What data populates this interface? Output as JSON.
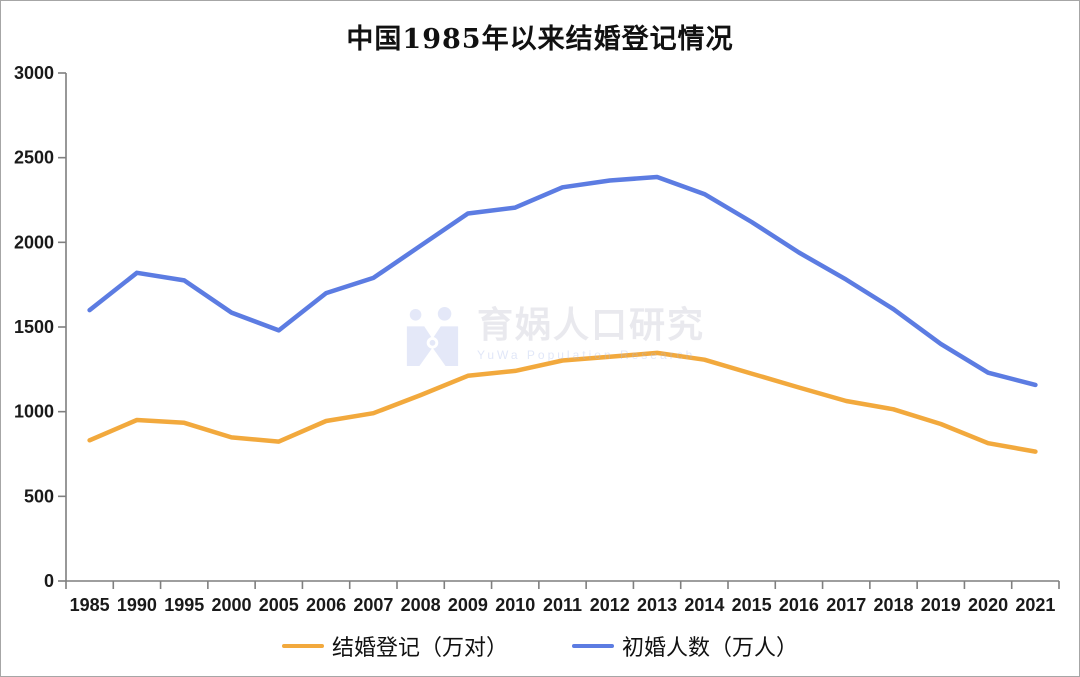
{
  "title": "中国1985年以来结婚登记情况",
  "watermark": {
    "brand": "育娲人口研究",
    "subtext": "YuWa Population Research"
  },
  "colors": {
    "marriage_registrations": "#F2A93D",
    "first_marriages": "#5C7CE2",
    "axis": "#7f7f7f",
    "watermark_logo": "#e4e8f8"
  },
  "chart_data": {
    "type": "line",
    "title": "中国1985年以来结婚登记情况",
    "categories": [
      "1985",
      "1990",
      "1995",
      "2000",
      "2005",
      "2006",
      "2007",
      "2008",
      "2009",
      "2010",
      "2011",
      "2012",
      "2013",
      "2014",
      "2015",
      "2016",
      "2017",
      "2018",
      "2019",
      "2020",
      "2021"
    ],
    "series": [
      {
        "name": "结婚登记（万对）",
        "color": "#F2A93D",
        "values": [
          831,
          951,
          934,
          848,
          823,
          945,
          991,
          1098,
          1212,
          1241,
          1302,
          1324,
          1347,
          1307,
          1225,
          1143,
          1063,
          1014,
          927,
          814,
          764
        ]
      },
      {
        "name": "初婚人数（万人）",
        "color": "#5C7CE2",
        "values": [
          1600,
          1820,
          1775,
          1585,
          1480,
          1700,
          1790,
          1980,
          2170,
          2205,
          2325,
          2365,
          2386,
          2285,
          2120,
          1940,
          1780,
          1605,
          1400,
          1230,
          1158
        ]
      }
    ],
    "xlabel": "",
    "ylabel": "",
    "ylim": [
      0,
      3000
    ],
    "ytick_step": 500,
    "grid": false,
    "legend_position": "bottom"
  }
}
